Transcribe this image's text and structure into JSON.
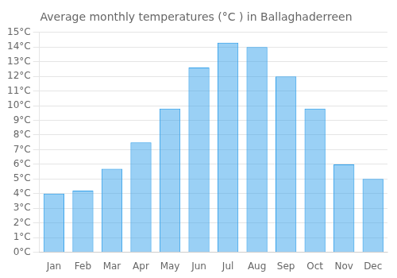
{
  "chart_data": {
    "type": "bar",
    "title": "Average monthly temperatures (°C ) in Ballaghaderreen",
    "categories": [
      "Jan",
      "Feb",
      "Mar",
      "Apr",
      "May",
      "Jun",
      "Jul",
      "Aug",
      "Sep",
      "Oct",
      "Nov",
      "Dec"
    ],
    "values": [
      4.0,
      4.2,
      5.7,
      7.5,
      9.8,
      12.6,
      14.3,
      14.0,
      12.0,
      9.8,
      6.0,
      5.0
    ],
    "ylim": [
      0,
      15
    ],
    "yticks": [
      {
        "value": 0,
        "label": "0°C"
      },
      {
        "value": 1,
        "label": "1°C"
      },
      {
        "value": 2,
        "label": "2°C"
      },
      {
        "value": 3,
        "label": "3°C"
      },
      {
        "value": 4,
        "label": "4°C"
      },
      {
        "value": 5,
        "label": "5°C"
      },
      {
        "value": 6,
        "label": "6°C"
      },
      {
        "value": 7,
        "label": "7°C"
      },
      {
        "value": 8,
        "label": "8°C"
      },
      {
        "value": 9,
        "label": "9°C"
      },
      {
        "value": 10,
        "label": "10°C"
      },
      {
        "value": 11,
        "label": "11°C"
      },
      {
        "value": 12,
        "label": "12°C"
      },
      {
        "value": 13,
        "label": "13°C"
      },
      {
        "value": 14,
        "label": "14°C"
      },
      {
        "value": 15,
        "label": "15°C"
      }
    ],
    "grid": true
  }
}
